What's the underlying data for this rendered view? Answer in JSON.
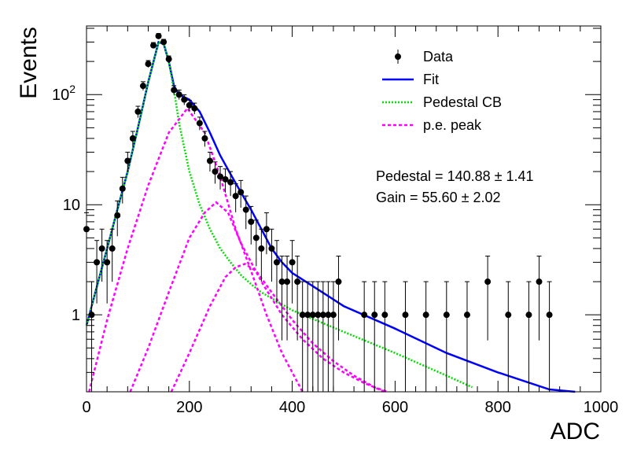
{
  "chart_data": {
    "type": "scatter",
    "title": "",
    "xlabel": "ADC",
    "ylabel": "Events",
    "xlim": [
      0,
      1000
    ],
    "ylim": [
      0.2,
      420
    ],
    "yscale": "log",
    "x_ticks": [
      {
        "value": 0,
        "label": "0"
      },
      {
        "value": 200,
        "label": "200"
      },
      {
        "value": 400,
        "label": "400"
      },
      {
        "value": 600,
        "label": "600"
      },
      {
        "value": 800,
        "label": "800"
      },
      {
        "value": 1000,
        "label": "1000"
      }
    ],
    "y_ticks": [
      {
        "value": 1,
        "label": "1"
      },
      {
        "value": 10,
        "label": "10"
      },
      {
        "value": 100,
        "label": "10",
        "exponent": "2"
      }
    ],
    "legend": {
      "placement": "top-right",
      "entries": [
        {
          "label": "Data",
          "style": "marker",
          "color": "#000000"
        },
        {
          "label": "Fit",
          "style": "solid",
          "color": "#0000ff"
        },
        {
          "label": "Pedestal CB",
          "style": "dotted",
          "color": "#00dd00"
        },
        {
          "label": "p.e. peak",
          "style": "dashed",
          "color": "#ff00ff"
        }
      ]
    },
    "annotations": [
      {
        "label": "Pedestal = 140.88",
        "pm": "1.41"
      },
      {
        "label": "Gain = 55.60",
        "pm": "2.02"
      }
    ],
    "series": [
      {
        "name": "Data",
        "kind": "points",
        "color": "#000000",
        "x": [
          0,
          10,
          20,
          30,
          40,
          50,
          60,
          70,
          80,
          90,
          100,
          110,
          120,
          130,
          140,
          150,
          160,
          170,
          180,
          190,
          200,
          210,
          220,
          230,
          240,
          250,
          260,
          270,
          280,
          290,
          300,
          310,
          320,
          330,
          340,
          350,
          360,
          370,
          380,
          390,
          400,
          410,
          420,
          430,
          440,
          450,
          460,
          470,
          480,
          490,
          540,
          560,
          580,
          620,
          660,
          700,
          740,
          780,
          820,
          860,
          880,
          900
        ],
        "y": [
          6,
          1,
          3,
          4,
          3,
          4,
          8,
          14,
          25,
          40,
          70,
          120,
          190,
          280,
          340,
          300,
          210,
          110,
          100,
          90,
          80,
          75,
          55,
          40,
          25,
          20,
          18,
          17,
          16,
          12,
          13,
          9,
          7,
          5,
          4,
          6,
          4,
          3,
          2,
          2,
          3,
          2,
          1,
          1,
          1,
          1,
          1,
          1,
          1,
          2,
          1,
          1,
          1,
          1,
          1,
          1,
          1,
          2,
          1,
          1,
          2,
          1
        ]
      },
      {
        "name": "Fit",
        "kind": "curve",
        "color": "#0000ff",
        "x": [
          0,
          20,
          40,
          60,
          80,
          100,
          120,
          140,
          150,
          160,
          170,
          180,
          200,
          220,
          240,
          260,
          280,
          300,
          320,
          340,
          360,
          380,
          400,
          450,
          500,
          600,
          700,
          800,
          900,
          950
        ],
        "y": [
          0.8,
          1.8,
          4,
          9,
          20,
          50,
          130,
          300,
          290,
          200,
          120,
          100,
          90,
          70,
          45,
          28,
          19,
          13,
          9,
          6,
          4,
          3,
          2.4,
          1.7,
          1.2,
          0.75,
          0.45,
          0.3,
          0.21,
          0.2
        ]
      },
      {
        "name": "Pedestal CB",
        "kind": "curve",
        "color": "#00dd00",
        "x": [
          0,
          20,
          40,
          60,
          80,
          100,
          120,
          140,
          150,
          160,
          170,
          180,
          200,
          220,
          240,
          260,
          280,
          300,
          320,
          340,
          400,
          500,
          600,
          700,
          750
        ],
        "y": [
          0.8,
          1.8,
          4,
          9,
          20,
          50,
          130,
          300,
          290,
          200,
          110,
          55,
          20,
          10,
          6,
          4,
          3,
          2.3,
          1.9,
          1.6,
          1.1,
          0.7,
          0.45,
          0.28,
          0.22
        ]
      },
      {
        "name": "p.e. peak 1",
        "kind": "curve",
        "color": "#ff00ff",
        "x": [
          5,
          40,
          80,
          120,
          160,
          196,
          230,
          260,
          290,
          320,
          350,
          380,
          420
        ],
        "y": [
          0.2,
          0.9,
          4,
          15,
          45,
          75,
          45,
          18,
          6,
          2.5,
          1,
          0.45,
          0.2
        ]
      },
      {
        "name": "p.e. peak 2",
        "kind": "curve",
        "color": "#ff00ff",
        "x": [
          85,
          120,
          160,
          200,
          230,
          252,
          275,
          300,
          340,
          380,
          420,
          460,
          500,
          540,
          580
        ],
        "y": [
          0.2,
          0.5,
          1.6,
          5,
          8.5,
          10.5,
          8.5,
          4.5,
          2,
          1,
          0.6,
          0.4,
          0.3,
          0.24,
          0.2
        ]
      },
      {
        "name": "p.e. peak 3",
        "kind": "curve",
        "color": "#ff00ff",
        "x": [
          165,
          200,
          240,
          270,
          290,
          308,
          330,
          360,
          400,
          440,
          480,
          520,
          560,
          585
        ],
        "y": [
          0.2,
          0.45,
          1.2,
          2.2,
          2.7,
          2.9,
          2.5,
          1.6,
          0.9,
          0.55,
          0.38,
          0.28,
          0.22,
          0.2
        ]
      }
    ]
  }
}
